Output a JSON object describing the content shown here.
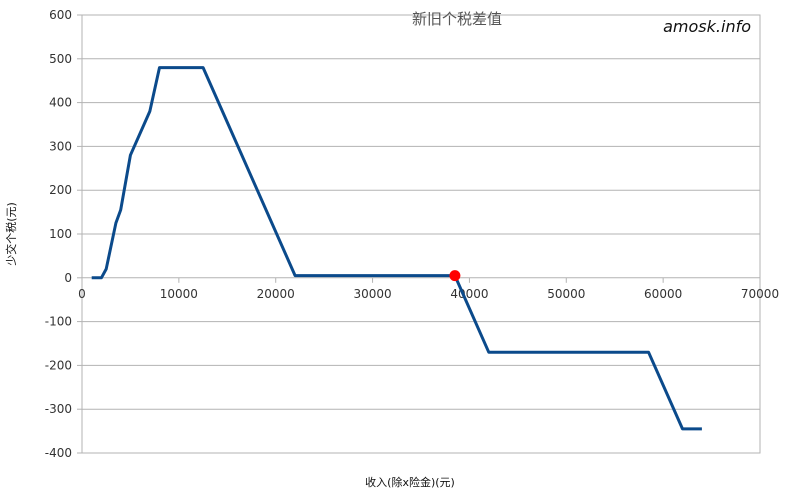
{
  "chart_data": {
    "type": "line",
    "title": "新旧个税差值",
    "watermark": "amosk.info",
    "xlabel": "收入(除x险金)(元)",
    "ylabel": "少交个税(元)",
    "xlim": [
      0,
      70000
    ],
    "ylim": [
      -400,
      600
    ],
    "x_ticks": [
      0,
      10000,
      20000,
      30000,
      40000,
      50000,
      60000,
      70000
    ],
    "y_ticks": [
      600,
      500,
      400,
      300,
      200,
      100,
      0,
      -100,
      -200,
      -300,
      -400
    ],
    "x_tick_labels": [
      "0",
      "10000",
      "20000",
      "30000",
      "40000",
      "50000",
      "60000",
      "70000"
    ],
    "y_tick_labels": [
      "600",
      "500",
      "400",
      "300",
      "200",
      "100",
      "0",
      "-100",
      "-200",
      "-300",
      "-400"
    ],
    "grid": true,
    "legend": "none",
    "series": [
      {
        "color": "#0b4a8b",
        "points": [
          [
            1000,
            0
          ],
          [
            2000,
            0
          ],
          [
            2500,
            20
          ],
          [
            3500,
            125
          ],
          [
            4000,
            155
          ],
          [
            5000,
            280
          ],
          [
            7000,
            380
          ],
          [
            8000,
            480
          ],
          [
            12500,
            480
          ],
          [
            22000,
            5
          ],
          [
            38500,
            5
          ],
          [
            42000,
            -170
          ],
          [
            58500,
            -170
          ],
          [
            62000,
            -345
          ],
          [
            64000,
            -345
          ]
        ]
      }
    ],
    "highlight_point": {
      "x": 38500,
      "y": 5,
      "color": "#ff0000"
    }
  }
}
